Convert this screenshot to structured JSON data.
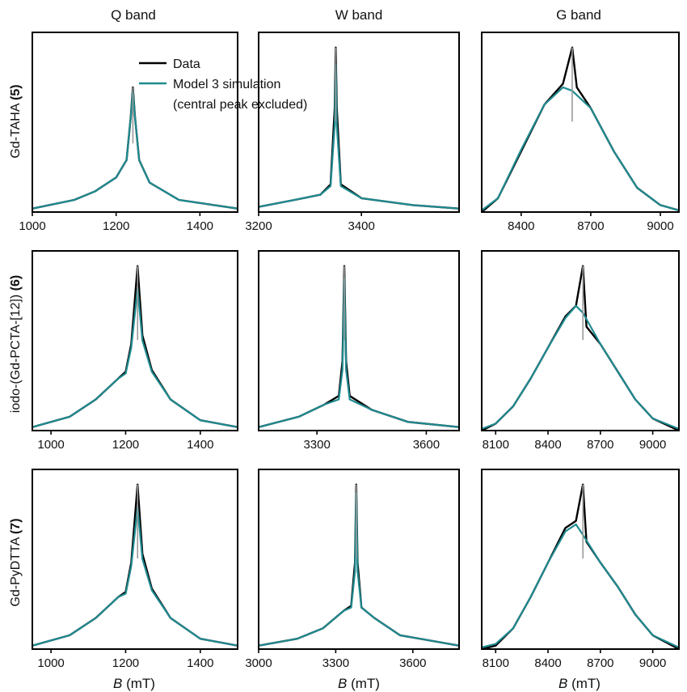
{
  "colors": {
    "data": "#000000",
    "simulation": "#1f8a8f",
    "excluded_peak": "#9a9a9a"
  },
  "figure": {
    "column_titles": [
      "Q band",
      "W band",
      "G band"
    ],
    "row_labels": [
      {
        "main": "Gd-TAHA ",
        "bold": "(5)"
      },
      {
        "main": "iodo-(Gd-PCTA-[12]) ",
        "bold": "(6)"
      },
      {
        "main": "Gd-PyDTTA ",
        "bold": "(7)"
      }
    ],
    "xlabel": {
      "symbol": "B",
      "unit": " (mT)"
    },
    "legend": {
      "entries": [
        "Data",
        "Model 3 simulation",
        "(central peak excluded)"
      ]
    }
  },
  "chart_data": [
    {
      "type": "line",
      "row": 0,
      "col": 0,
      "panel": "Gd-TAHA (5) Q band",
      "xlim": [
        1000,
        1490
      ],
      "xticks": [
        1000,
        1200,
        1400
      ],
      "center": 1240,
      "series": [
        {
          "name": "Data",
          "points": [
            [
              1000,
              0.02
            ],
            [
              1100,
              0.07
            ],
            [
              1150,
              0.12
            ],
            [
              1200,
              0.2
            ],
            [
              1225,
              0.3
            ],
            [
              1235,
              0.55
            ],
            [
              1240,
              0.72
            ],
            [
              1245,
              0.55
            ],
            [
              1255,
              0.3
            ],
            [
              1280,
              0.17
            ],
            [
              1350,
              0.07
            ],
            [
              1490,
              0.02
            ]
          ]
        },
        {
          "name": "Model 3 simulation",
          "points": [
            [
              1000,
              0.02
            ],
            [
              1100,
              0.07
            ],
            [
              1150,
              0.12
            ],
            [
              1200,
              0.2
            ],
            [
              1225,
              0.3
            ],
            [
              1235,
              0.55
            ],
            [
              1240,
              0.7
            ],
            [
              1245,
              0.55
            ],
            [
              1255,
              0.3
            ],
            [
              1280,
              0.17
            ],
            [
              1350,
              0.07
            ],
            [
              1490,
              0.02
            ]
          ]
        }
      ]
    },
    {
      "type": "line",
      "row": 0,
      "col": 1,
      "panel": "Gd-TAHA (5) W band",
      "xlim": [
        3200,
        3590
      ],
      "xticks": [
        3200,
        3400
      ],
      "center": 3350,
      "series": [
        {
          "name": "Data",
          "points": [
            [
              3200,
              0.03
            ],
            [
              3270,
              0.07
            ],
            [
              3320,
              0.1
            ],
            [
              3340,
              0.16
            ],
            [
              3348,
              0.6
            ],
            [
              3350,
              0.95
            ],
            [
              3352,
              0.6
            ],
            [
              3360,
              0.16
            ],
            [
              3400,
              0.08
            ],
            [
              3500,
              0.04
            ],
            [
              3590,
              0.02
            ]
          ]
        },
        {
          "name": "Model 3 simulation",
          "points": [
            [
              3200,
              0.03
            ],
            [
              3270,
              0.07
            ],
            [
              3320,
              0.1
            ],
            [
              3340,
              0.15
            ],
            [
              3348,
              0.5
            ],
            [
              3350,
              0.85
            ],
            [
              3352,
              0.5
            ],
            [
              3360,
              0.15
            ],
            [
              3400,
              0.08
            ],
            [
              3500,
              0.04
            ],
            [
              3590,
              0.02
            ]
          ]
        }
      ]
    },
    {
      "type": "line",
      "row": 0,
      "col": 2,
      "panel": "Gd-TAHA (5) G band",
      "xlim": [
        8230,
        9080
      ],
      "xticks": [
        8400,
        8700,
        9000
      ],
      "center": 8620,
      "series": [
        {
          "name": "Data",
          "points": [
            [
              8230,
              0.0
            ],
            [
              8300,
              0.08
            ],
            [
              8400,
              0.35
            ],
            [
              8500,
              0.62
            ],
            [
              8580,
              0.74
            ],
            [
              8620,
              0.95
            ],
            [
              8640,
              0.72
            ],
            [
              8700,
              0.6
            ],
            [
              8800,
              0.35
            ],
            [
              8900,
              0.14
            ],
            [
              9000,
              0.04
            ],
            [
              9080,
              0.01
            ]
          ]
        },
        {
          "name": "Model 3 simulation",
          "points": [
            [
              8230,
              0.01
            ],
            [
              8300,
              0.08
            ],
            [
              8400,
              0.36
            ],
            [
              8500,
              0.62
            ],
            [
              8580,
              0.72
            ],
            [
              8620,
              0.7
            ],
            [
              8700,
              0.6
            ],
            [
              8800,
              0.35
            ],
            [
              8900,
              0.14
            ],
            [
              9000,
              0.04
            ],
            [
              9080,
              0.01
            ]
          ]
        }
      ]
    },
    {
      "type": "line",
      "row": 1,
      "col": 0,
      "panel": "iodo-(Gd-PCTA-[12]) (6) Q band",
      "xlim": [
        950,
        1500
      ],
      "xticks": [
        1000,
        1200,
        1400
      ],
      "center": 1232,
      "series": [
        {
          "name": "Data",
          "points": [
            [
              950,
              0.02
            ],
            [
              1050,
              0.08
            ],
            [
              1120,
              0.18
            ],
            [
              1180,
              0.3
            ],
            [
              1200,
              0.34
            ],
            [
              1215,
              0.5
            ],
            [
              1232,
              0.95
            ],
            [
              1245,
              0.55
            ],
            [
              1270,
              0.35
            ],
            [
              1320,
              0.18
            ],
            [
              1400,
              0.06
            ],
            [
              1500,
              0.02
            ]
          ]
        },
        {
          "name": "Model 3 simulation",
          "points": [
            [
              950,
              0.02
            ],
            [
              1050,
              0.08
            ],
            [
              1120,
              0.18
            ],
            [
              1180,
              0.3
            ],
            [
              1200,
              0.33
            ],
            [
              1215,
              0.48
            ],
            [
              1232,
              0.82
            ],
            [
              1245,
              0.52
            ],
            [
              1270,
              0.34
            ],
            [
              1320,
              0.18
            ],
            [
              1400,
              0.06
            ],
            [
              1500,
              0.02
            ]
          ]
        }
      ]
    },
    {
      "type": "line",
      "row": 1,
      "col": 1,
      "panel": "iodo-(Gd-PCTA-[12]) (6) W band",
      "xlim": [
        3140,
        3690
      ],
      "xticks": [
        3300,
        3600
      ],
      "center": 3375,
      "series": [
        {
          "name": "Data",
          "points": [
            [
              3140,
              0.02
            ],
            [
              3250,
              0.08
            ],
            [
              3320,
              0.15
            ],
            [
              3360,
              0.2
            ],
            [
              3370,
              0.4
            ],
            [
              3375,
              0.95
            ],
            [
              3380,
              0.4
            ],
            [
              3390,
              0.2
            ],
            [
              3450,
              0.12
            ],
            [
              3550,
              0.05
            ],
            [
              3690,
              0.02
            ]
          ]
        },
        {
          "name": "Model 3 simulation",
          "points": [
            [
              3140,
              0.02
            ],
            [
              3250,
              0.08
            ],
            [
              3320,
              0.15
            ],
            [
              3360,
              0.18
            ],
            [
              3370,
              0.35
            ],
            [
              3375,
              0.88
            ],
            [
              3380,
              0.35
            ],
            [
              3390,
              0.18
            ],
            [
              3450,
              0.12
            ],
            [
              3550,
              0.05
            ],
            [
              3690,
              0.02
            ]
          ]
        }
      ]
    },
    {
      "type": "line",
      "row": 1,
      "col": 2,
      "panel": "iodo-(Gd-PCTA-[12]) (6) G band",
      "xlim": [
        8020,
        9150
      ],
      "xticks": [
        8100,
        8400,
        8700,
        9000
      ],
      "center": 8600,
      "series": [
        {
          "name": "Data",
          "points": [
            [
              8020,
              0.0
            ],
            [
              8100,
              0.04
            ],
            [
              8200,
              0.14
            ],
            [
              8300,
              0.3
            ],
            [
              8400,
              0.48
            ],
            [
              8500,
              0.66
            ],
            [
              8560,
              0.72
            ],
            [
              8600,
              0.95
            ],
            [
              8620,
              0.6
            ],
            [
              8700,
              0.5
            ],
            [
              8800,
              0.34
            ],
            [
              8900,
              0.18
            ],
            [
              9000,
              0.07
            ],
            [
              9150,
              0.0
            ]
          ]
        },
        {
          "name": "Model 3 simulation",
          "points": [
            [
              8020,
              0.01
            ],
            [
              8100,
              0.04
            ],
            [
              8200,
              0.14
            ],
            [
              8300,
              0.3
            ],
            [
              8400,
              0.48
            ],
            [
              8500,
              0.65
            ],
            [
              8560,
              0.72
            ],
            [
              8600,
              0.68
            ],
            [
              8700,
              0.5
            ],
            [
              8800,
              0.34
            ],
            [
              8900,
              0.18
            ],
            [
              9000,
              0.07
            ],
            [
              9150,
              0.01
            ]
          ]
        }
      ]
    },
    {
      "type": "line",
      "row": 2,
      "col": 0,
      "panel": "Gd-PyDTTA (7) Q band",
      "xlim": [
        950,
        1500
      ],
      "xticks": [
        1000,
        1200,
        1400
      ],
      "center": 1232,
      "series": [
        {
          "name": "Data",
          "points": [
            [
              950,
              0.02
            ],
            [
              1050,
              0.08
            ],
            [
              1120,
              0.18
            ],
            [
              1180,
              0.3
            ],
            [
              1200,
              0.33
            ],
            [
              1215,
              0.5
            ],
            [
              1232,
              0.95
            ],
            [
              1245,
              0.55
            ],
            [
              1270,
              0.35
            ],
            [
              1320,
              0.18
            ],
            [
              1400,
              0.06
            ],
            [
              1500,
              0.02
            ]
          ]
        },
        {
          "name": "Model 3 simulation",
          "points": [
            [
              950,
              0.02
            ],
            [
              1050,
              0.08
            ],
            [
              1120,
              0.18
            ],
            [
              1180,
              0.3
            ],
            [
              1200,
              0.32
            ],
            [
              1215,
              0.48
            ],
            [
              1232,
              0.82
            ],
            [
              1245,
              0.52
            ],
            [
              1270,
              0.34
            ],
            [
              1320,
              0.18
            ],
            [
              1400,
              0.06
            ],
            [
              1500,
              0.02
            ]
          ]
        }
      ]
    },
    {
      "type": "line",
      "row": 2,
      "col": 1,
      "panel": "Gd-PyDTTA (7) W band",
      "xlim": [
        3000,
        3780
      ],
      "xticks": [
        3000,
        3300,
        3600
      ],
      "center": 3380,
      "series": [
        {
          "name": "Data",
          "points": [
            [
              3000,
              0.02
            ],
            [
              3150,
              0.06
            ],
            [
              3250,
              0.12
            ],
            [
              3330,
              0.22
            ],
            [
              3360,
              0.25
            ],
            [
              3375,
              0.5
            ],
            [
              3380,
              0.95
            ],
            [
              3385,
              0.5
            ],
            [
              3400,
              0.24
            ],
            [
              3450,
              0.18
            ],
            [
              3550,
              0.08
            ],
            [
              3780,
              0.02
            ]
          ]
        },
        {
          "name": "Model 3 simulation",
          "points": [
            [
              3000,
              0.02
            ],
            [
              3150,
              0.06
            ],
            [
              3250,
              0.12
            ],
            [
              3330,
              0.22
            ],
            [
              3360,
              0.24
            ],
            [
              3375,
              0.45
            ],
            [
              3380,
              0.9
            ],
            [
              3385,
              0.45
            ],
            [
              3400,
              0.24
            ],
            [
              3450,
              0.18
            ],
            [
              3550,
              0.08
            ],
            [
              3780,
              0.02
            ]
          ]
        }
      ]
    },
    {
      "type": "line",
      "row": 2,
      "col": 2,
      "panel": "Gd-PyDTTA (7) G band",
      "xlim": [
        8020,
        9150
      ],
      "xticks": [
        8100,
        8400,
        8700,
        9000
      ],
      "center": 8600,
      "series": [
        {
          "name": "Data",
          "points": [
            [
              8020,
              0.0
            ],
            [
              8100,
              0.02
            ],
            [
              8200,
              0.12
            ],
            [
              8300,
              0.3
            ],
            [
              8400,
              0.5
            ],
            [
              8500,
              0.7
            ],
            [
              8560,
              0.74
            ],
            [
              8600,
              0.95
            ],
            [
              8620,
              0.62
            ],
            [
              8700,
              0.5
            ],
            [
              8800,
              0.36
            ],
            [
              8900,
              0.2
            ],
            [
              9000,
              0.08
            ],
            [
              9150,
              0.0
            ]
          ]
        },
        {
          "name": "Model 3 simulation",
          "points": [
            [
              8020,
              0.01
            ],
            [
              8100,
              0.03
            ],
            [
              8200,
              0.12
            ],
            [
              8300,
              0.3
            ],
            [
              8400,
              0.5
            ],
            [
              8500,
              0.68
            ],
            [
              8560,
              0.72
            ],
            [
              8600,
              0.66
            ],
            [
              8700,
              0.5
            ],
            [
              8800,
              0.36
            ],
            [
              8900,
              0.2
            ],
            [
              9000,
              0.08
            ],
            [
              9150,
              0.01
            ]
          ]
        }
      ]
    }
  ]
}
